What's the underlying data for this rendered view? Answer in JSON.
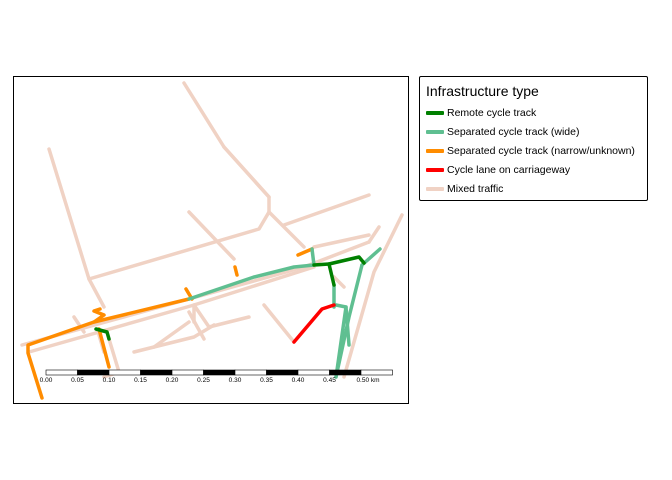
{
  "legend": {
    "title": "Infrastructure type",
    "items": [
      {
        "label": "Remote cycle track",
        "color": "#008000"
      },
      {
        "label": "Separated cycle track (wide)",
        "color": "#5fbf91"
      },
      {
        "label": "Separated cycle track (narrow/unknown)",
        "color": "#ff8c00"
      },
      {
        "label": "Cycle lane on carriageway",
        "color": "#ff0000"
      },
      {
        "label": "Mixed traffic",
        "color": "#f0d2c4"
      }
    ]
  },
  "scale_bar": {
    "labels": [
      "0.00",
      "0.05",
      "0.10",
      "0.15",
      "0.20",
      "0.25",
      "0.30",
      "0.35",
      "0.40",
      "0.45",
      "0.50 km"
    ]
  }
}
